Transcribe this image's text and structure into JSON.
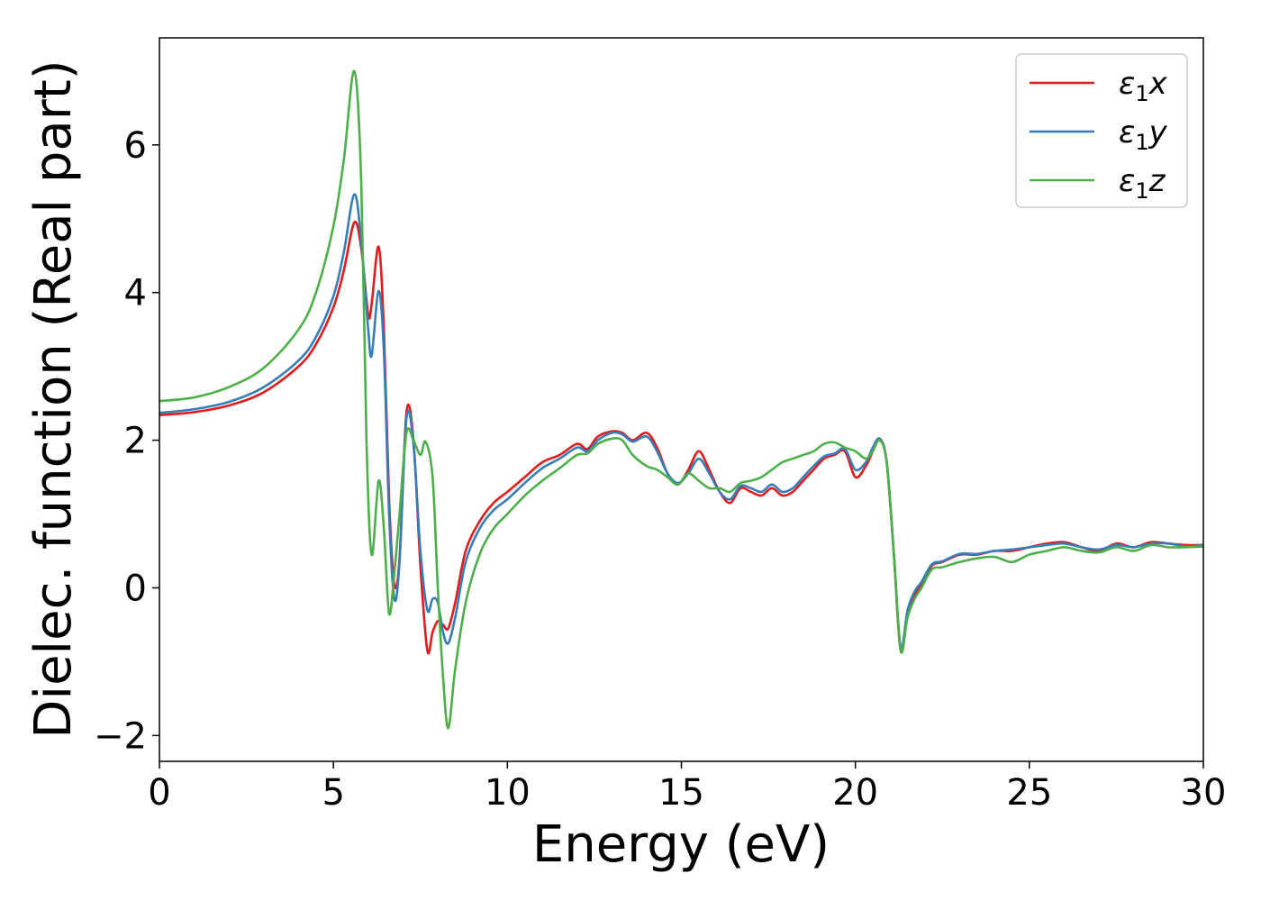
{
  "chart_data": {
    "type": "line",
    "xlabel": "Energy (eV)",
    "ylabel": "Dielec. function (Real part)",
    "xlim": [
      0,
      30
    ],
    "ylim": [
      -2.35,
      7.45
    ],
    "xticks": [
      0,
      5,
      10,
      15,
      20,
      25,
      30
    ],
    "yticks": [
      -2,
      0,
      2,
      4,
      6
    ],
    "xtick_labels": [
      "0",
      "5",
      "10",
      "15",
      "20",
      "25",
      "30"
    ],
    "ytick_labels": [
      "−2",
      "0",
      "2",
      "4",
      "6"
    ],
    "grid": false,
    "legend_position": "top-right",
    "series": [
      {
        "name": "ε1x",
        "legend": {
          "symbol": "ε",
          "sub": "1",
          "var": "x"
        },
        "color": "#e41a1c",
        "x": [
          0,
          1,
          2,
          3,
          4,
          4.5,
          5,
          5.3,
          5.6,
          5.8,
          6.0,
          6.1,
          6.3,
          6.45,
          6.6,
          6.75,
          6.9,
          7.1,
          7.3,
          7.5,
          7.7,
          7.85,
          8.0,
          8.15,
          8.3,
          8.5,
          8.8,
          9.2,
          9.6,
          10,
          10.5,
          11,
          11.5,
          12,
          12.3,
          12.6,
          13,
          13.3,
          13.6,
          14,
          14.3,
          14.6,
          14.9,
          15.2,
          15.5,
          15.8,
          16.1,
          16.4,
          16.7,
          17,
          17.3,
          17.6,
          17.9,
          18.2,
          18.5,
          18.8,
          19.1,
          19.4,
          19.7,
          20,
          20.3,
          20.5,
          20.7,
          20.9,
          21.1,
          21.3,
          21.5,
          21.7,
          21.9,
          22.2,
          22.5,
          23,
          23.5,
          24,
          24.5,
          25,
          25.5,
          26,
          26.5,
          27,
          27.5,
          28,
          28.5,
          29,
          29.5,
          30
        ],
        "y": [
          2.34,
          2.38,
          2.47,
          2.65,
          3.0,
          3.3,
          3.8,
          4.3,
          4.95,
          4.6,
          3.7,
          3.85,
          4.62,
          3.5,
          1.2,
          0.05,
          0.4,
          2.38,
          2.0,
          0.3,
          -0.85,
          -0.6,
          -0.45,
          -0.5,
          -0.55,
          -0.2,
          0.5,
          0.9,
          1.15,
          1.3,
          1.5,
          1.7,
          1.8,
          1.95,
          1.88,
          2.05,
          2.12,
          2.1,
          2.0,
          2.1,
          1.9,
          1.55,
          1.4,
          1.6,
          1.85,
          1.6,
          1.3,
          1.15,
          1.35,
          1.3,
          1.25,
          1.35,
          1.25,
          1.3,
          1.45,
          1.6,
          1.75,
          1.8,
          1.85,
          1.5,
          1.65,
          1.85,
          2.02,
          1.7,
          0.5,
          -0.85,
          -0.35,
          -0.1,
          0.05,
          0.3,
          0.35,
          0.45,
          0.45,
          0.5,
          0.5,
          0.55,
          0.6,
          0.62,
          0.55,
          0.5,
          0.6,
          0.55,
          0.62,
          0.6,
          0.58,
          0.58
        ]
      },
      {
        "name": "ε1y",
        "legend": {
          "symbol": "ε",
          "sub": "1",
          "var": "y"
        },
        "color": "#377eb8",
        "x": [
          0,
          1,
          2,
          3,
          4,
          4.5,
          5,
          5.3,
          5.6,
          5.8,
          6.0,
          6.1,
          6.3,
          6.45,
          6.6,
          6.75,
          6.9,
          7.1,
          7.3,
          7.5,
          7.7,
          7.85,
          8.0,
          8.15,
          8.3,
          8.5,
          8.8,
          9.2,
          9.6,
          10,
          10.5,
          11,
          11.5,
          12,
          12.3,
          12.6,
          13,
          13.3,
          13.6,
          14,
          14.3,
          14.6,
          14.9,
          15.2,
          15.5,
          15.8,
          16.1,
          16.4,
          16.7,
          17,
          17.3,
          17.6,
          17.9,
          18.2,
          18.5,
          18.8,
          19.1,
          19.4,
          19.7,
          20,
          20.3,
          20.5,
          20.7,
          20.9,
          21.1,
          21.3,
          21.5,
          21.7,
          21.9,
          22.2,
          22.5,
          23,
          23.5,
          24,
          24.5,
          25,
          25.5,
          26,
          26.5,
          27,
          27.5,
          28,
          28.5,
          29,
          29.5,
          30
        ],
        "y": [
          2.37,
          2.42,
          2.52,
          2.72,
          3.08,
          3.4,
          3.95,
          4.55,
          5.33,
          4.7,
          3.5,
          3.15,
          4.02,
          3.2,
          1.0,
          -0.15,
          0.35,
          2.3,
          1.95,
          0.5,
          -0.3,
          -0.15,
          -0.2,
          -0.6,
          -0.75,
          -0.4,
          0.35,
          0.8,
          1.05,
          1.2,
          1.42,
          1.62,
          1.75,
          1.9,
          1.85,
          2.0,
          2.1,
          2.08,
          1.98,
          2.05,
          1.85,
          1.55,
          1.42,
          1.55,
          1.75,
          1.55,
          1.3,
          1.2,
          1.38,
          1.35,
          1.3,
          1.4,
          1.3,
          1.35,
          1.5,
          1.65,
          1.78,
          1.82,
          1.88,
          1.6,
          1.7,
          1.9,
          2.02,
          1.7,
          0.5,
          -0.8,
          -0.3,
          -0.05,
          0.08,
          0.32,
          0.36,
          0.46,
          0.46,
          0.5,
          0.52,
          0.55,
          0.58,
          0.6,
          0.55,
          0.52,
          0.58,
          0.55,
          0.6,
          0.6,
          0.56,
          0.58
        ]
      },
      {
        "name": "ε1z",
        "legend": {
          "symbol": "ε",
          "sub": "1",
          "var": "z"
        },
        "color": "#4daf4a",
        "x": [
          0,
          1,
          2,
          3,
          4,
          4.5,
          5,
          5.3,
          5.6,
          5.8,
          5.95,
          6.1,
          6.3,
          6.45,
          6.6,
          6.75,
          6.9,
          7.1,
          7.3,
          7.5,
          7.65,
          7.85,
          8.0,
          8.15,
          8.3,
          8.5,
          8.8,
          9.2,
          9.6,
          10,
          10.5,
          11,
          11.5,
          12,
          12.3,
          12.6,
          13,
          13.3,
          13.6,
          14,
          14.3,
          14.6,
          14.9,
          15.2,
          15.5,
          15.8,
          16.1,
          16.4,
          16.7,
          17,
          17.3,
          17.6,
          17.9,
          18.2,
          18.5,
          18.8,
          19.1,
          19.4,
          19.7,
          20,
          20.3,
          20.5,
          20.7,
          20.9,
          21.1,
          21.3,
          21.5,
          21.7,
          21.9,
          22.2,
          22.5,
          23,
          23.5,
          24,
          24.5,
          25,
          25.5,
          26,
          26.5,
          27,
          27.5,
          28,
          28.5,
          29,
          29.5,
          30
        ],
        "y": [
          2.53,
          2.58,
          2.72,
          2.98,
          3.5,
          4.0,
          4.9,
          5.8,
          7.0,
          5.5,
          2.0,
          0.45,
          1.45,
          0.8,
          -0.35,
          0.2,
          1.0,
          2.1,
          2.0,
          1.8,
          1.98,
          1.5,
          0.0,
          -1.2,
          -1.9,
          -1.1,
          -0.2,
          0.45,
          0.8,
          1.0,
          1.25,
          1.45,
          1.62,
          1.8,
          1.82,
          1.95,
          2.02,
          2.0,
          1.8,
          1.65,
          1.6,
          1.5,
          1.4,
          1.55,
          1.45,
          1.35,
          1.35,
          1.3,
          1.42,
          1.45,
          1.5,
          1.6,
          1.7,
          1.75,
          1.8,
          1.85,
          1.95,
          1.97,
          1.9,
          1.85,
          1.75,
          1.85,
          2.0,
          1.7,
          0.5,
          -0.85,
          -0.4,
          -0.15,
          0.0,
          0.25,
          0.28,
          0.35,
          0.4,
          0.42,
          0.35,
          0.45,
          0.5,
          0.55,
          0.5,
          0.48,
          0.55,
          0.5,
          0.58,
          0.55,
          0.55,
          0.56
        ]
      }
    ]
  }
}
